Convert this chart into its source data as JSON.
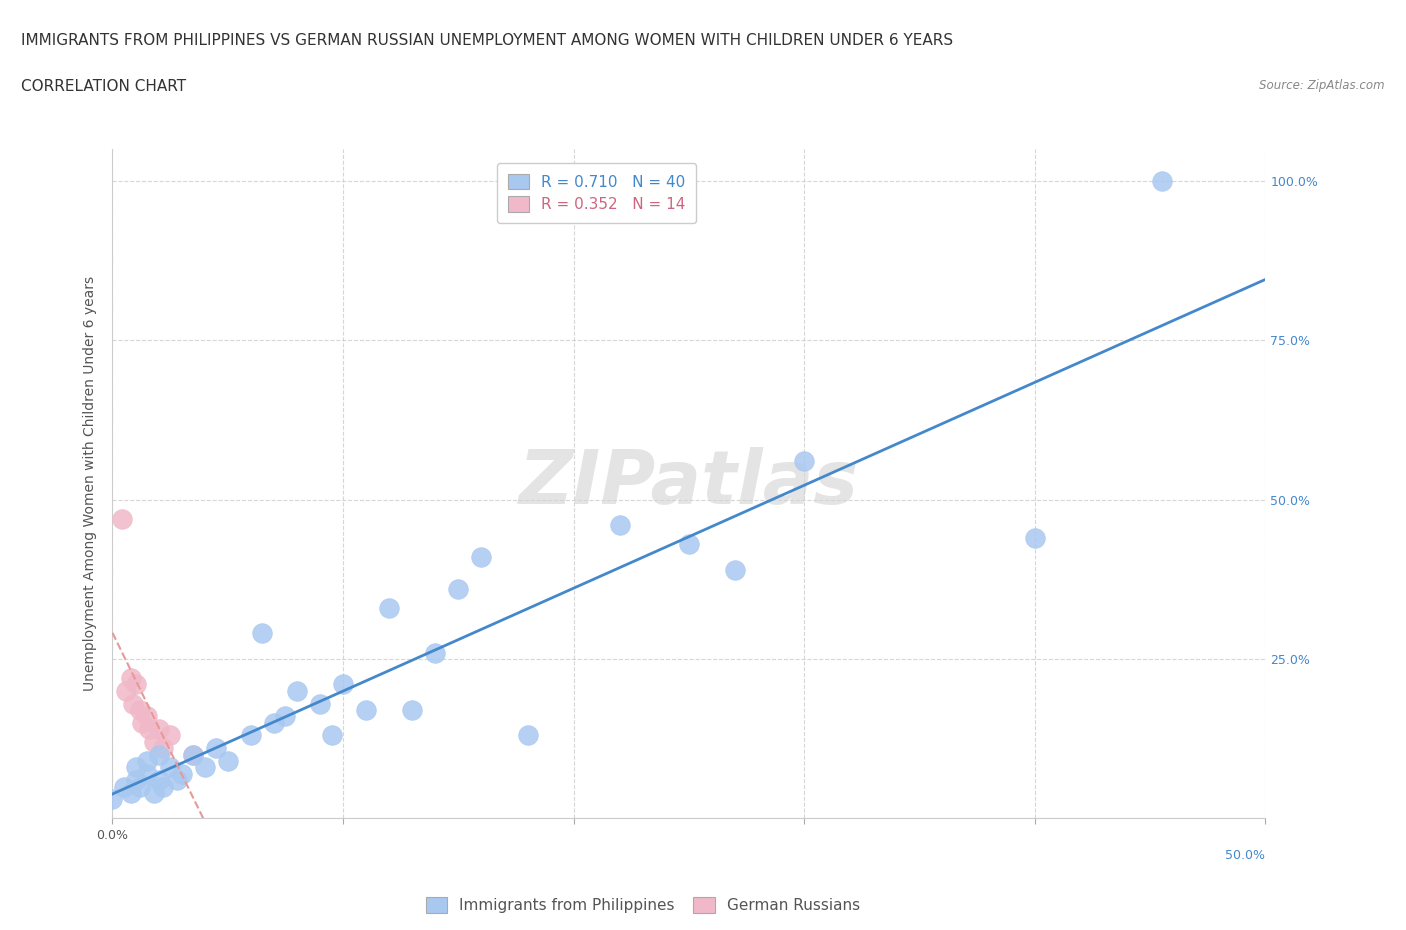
{
  "title": "IMMIGRANTS FROM PHILIPPINES VS GERMAN RUSSIAN UNEMPLOYMENT AMONG WOMEN WITH CHILDREN UNDER 6 YEARS",
  "subtitle": "CORRELATION CHART",
  "source": "Source: ZipAtlas.com",
  "ylabel": "Unemployment Among Women with Children Under 6 years",
  "xlim": [
    0.0,
    0.5
  ],
  "ylim": [
    0.0,
    1.05
  ],
  "xticks": [
    0.0,
    0.1,
    0.2,
    0.3,
    0.4,
    0.5
  ],
  "yticks": [
    0.0,
    0.25,
    0.5,
    0.75,
    1.0
  ],
  "xtick_labels": [
    "0.0%",
    "",
    "",
    "",
    "",
    ""
  ],
  "ytick_labels": [
    "",
    "25.0%",
    "50.0%",
    "75.0%",
    "100.0%"
  ],
  "blue_R": 0.71,
  "blue_N": 40,
  "pink_R": 0.352,
  "pink_N": 14,
  "blue_color": "#a8c8f0",
  "pink_color": "#f0b8c8",
  "blue_line_color": "#4488cc",
  "pink_line_color": "#e89898",
  "blue_text_color": "#4488cc",
  "pink_text_color": "#cc6680",
  "watermark": "ZIPatlas",
  "blue_points_x": [
    0.0,
    0.005,
    0.008,
    0.01,
    0.01,
    0.012,
    0.015,
    0.015,
    0.018,
    0.02,
    0.02,
    0.022,
    0.025,
    0.028,
    0.03,
    0.035,
    0.04,
    0.045,
    0.05,
    0.06,
    0.065,
    0.07,
    0.075,
    0.08,
    0.09,
    0.095,
    0.1,
    0.11,
    0.12,
    0.13,
    0.14,
    0.15,
    0.16,
    0.18,
    0.22,
    0.25,
    0.27,
    0.3,
    0.4,
    0.455
  ],
  "blue_points_y": [
    0.03,
    0.05,
    0.04,
    0.06,
    0.08,
    0.05,
    0.07,
    0.09,
    0.04,
    0.06,
    0.1,
    0.05,
    0.08,
    0.06,
    0.07,
    0.1,
    0.08,
    0.11,
    0.09,
    0.13,
    0.29,
    0.15,
    0.16,
    0.2,
    0.18,
    0.13,
    0.21,
    0.17,
    0.33,
    0.17,
    0.26,
    0.36,
    0.41,
    0.13,
    0.46,
    0.43,
    0.39,
    0.56,
    0.44,
    1.0
  ],
  "pink_points_x": [
    0.004,
    0.006,
    0.008,
    0.009,
    0.01,
    0.012,
    0.013,
    0.015,
    0.016,
    0.018,
    0.02,
    0.022,
    0.025,
    0.035
  ],
  "pink_points_y": [
    0.47,
    0.2,
    0.22,
    0.18,
    0.21,
    0.17,
    0.15,
    0.16,
    0.14,
    0.12,
    0.14,
    0.11,
    0.13,
    0.1
  ],
  "grid_color": "#cccccc",
  "background_color": "#ffffff",
  "title_fontsize": 11,
  "subtitle_fontsize": 11,
  "axis_label_fontsize": 10,
  "tick_fontsize": 9,
  "legend_fontsize": 11,
  "right_tick_color": "#4488cc"
}
